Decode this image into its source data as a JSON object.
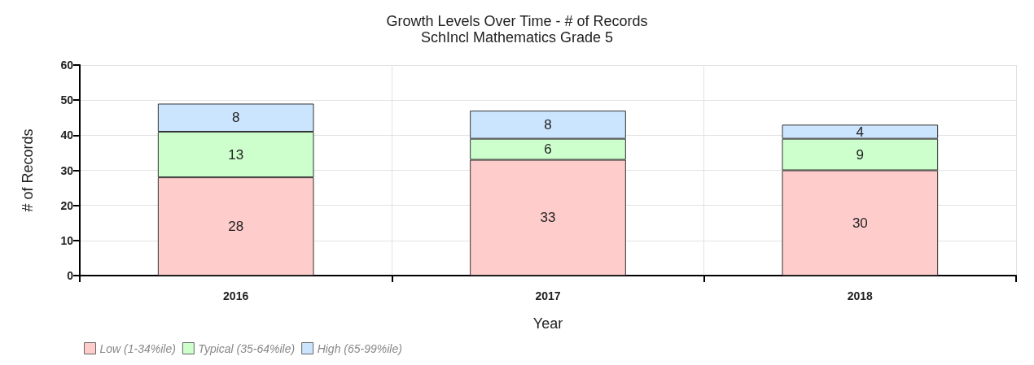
{
  "chart_data": {
    "type": "bar",
    "title": "Growth Levels Over Time - # of Records",
    "subtitle": "SchIncl Mathematics Grade 5",
    "xlabel": "Year",
    "ylabel": "# of Records",
    "categories": [
      "2016",
      "2017",
      "2018"
    ],
    "stacked": true,
    "series": [
      {
        "name": "Low (1-34%ile)",
        "color": "#ffcccc",
        "values": [
          28,
          33,
          30
        ]
      },
      {
        "name": "Typical (35-64%ile)",
        "color": "#ccffcc",
        "values": [
          13,
          6,
          9
        ]
      },
      {
        "name": "High (65-99%ile)",
        "color": "#cce5ff",
        "values": [
          8,
          8,
          4
        ]
      }
    ],
    "ylim": [
      0,
      60
    ],
    "yticks": [
      0,
      10,
      20,
      30,
      40,
      50,
      60
    ],
    "grid": true,
    "legend": "bottom left",
    "data_labels": true
  }
}
